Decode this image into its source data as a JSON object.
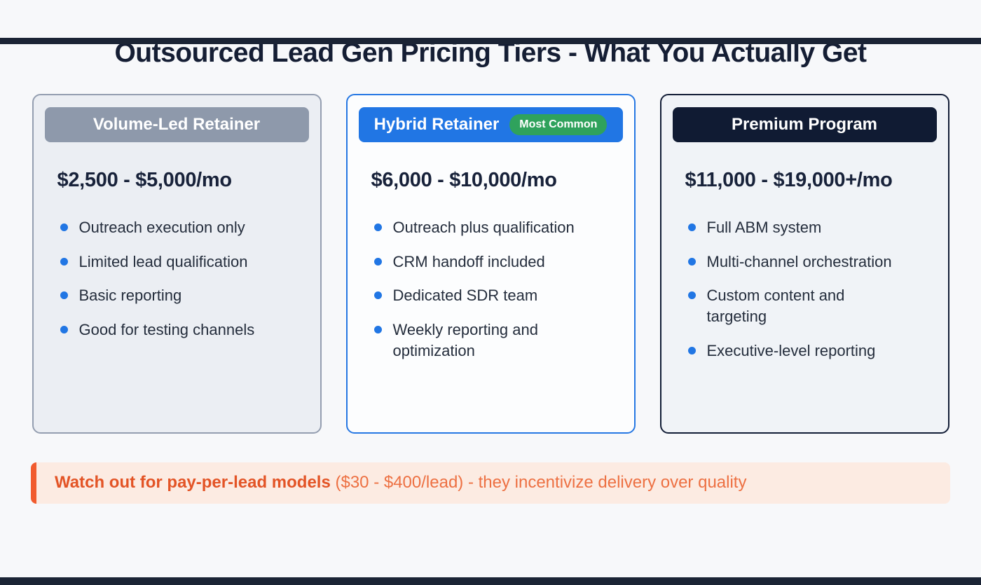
{
  "title": "Outsourced Lead Gen Pricing Tiers - What You Actually Get",
  "cards": [
    {
      "title": "Volume-Led Retainer",
      "price": "$2,500 - $5,000/mo",
      "features": [
        "Outreach execution only",
        "Limited lead qualification",
        "Basic reporting",
        "Good for testing channels"
      ]
    },
    {
      "title": "Hybrid Retainer",
      "badge": "Most Common",
      "price": "$6,000 - $10,000/mo",
      "features": [
        "Outreach plus qualification",
        "CRM handoff included",
        "Dedicated SDR team",
        "Weekly reporting and optimization"
      ]
    },
    {
      "title": "Premium Program",
      "price": "$11,000 - $19,000+/mo",
      "features": [
        "Full ABM system",
        "Multi-channel orchestration",
        "Custom content and targeting",
        "Executive-level reporting"
      ]
    }
  ],
  "warning": {
    "bold": "Watch out for pay-per-lead models",
    "rest": " ($30 - $400/lead) - they incentivize delivery over quality"
  },
  "colors": {
    "accent_blue": "#2176e4",
    "header_gray": "#8e99ab",
    "header_navy": "#101b33",
    "badge_green": "#2fa25c",
    "warning_accent": "#f15b2e",
    "warning_bg": "#fcebe2",
    "warning_text_bold": "#e35426",
    "warning_text": "#ed7042",
    "title_navy": "#151e34"
  }
}
